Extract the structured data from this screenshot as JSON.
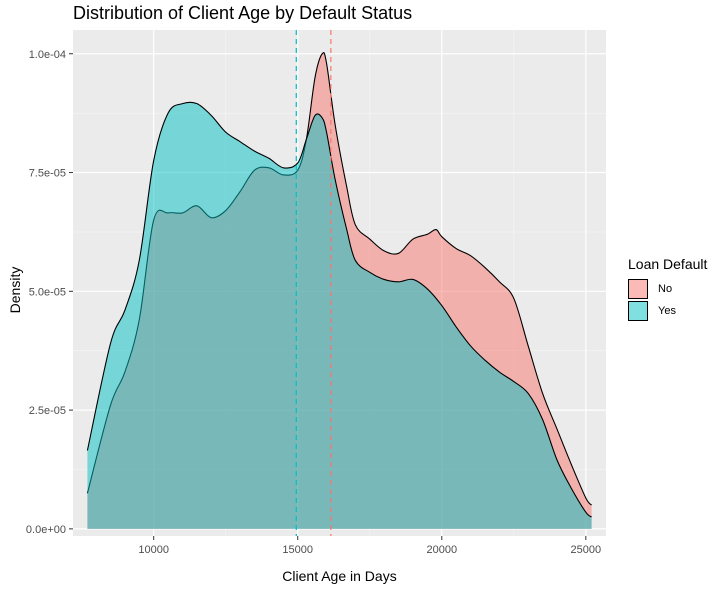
{
  "chart_data": {
    "type": "area",
    "title": "Distribution of Client Age by Default Status",
    "xlabel": "Client Age in Days",
    "ylabel": "Density",
    "xlim": [
      7200,
      25700
    ],
    "ylim": [
      -1.5e-06,
      0.000105
    ],
    "x_ticks": [
      10000,
      15000,
      20000,
      25000
    ],
    "x_tick_labels": [
      "10000",
      "15000",
      "20000",
      "25000"
    ],
    "y_ticks": [
      0,
      2.5e-05,
      5e-05,
      7.5e-05,
      0.0001
    ],
    "y_tick_labels": [
      "0.0e+00",
      "2.5e-05",
      "5.0e-05",
      "7.5e-05",
      "1.0e-04"
    ],
    "grid": true,
    "legend": {
      "title": "Loan Default",
      "position": "right"
    },
    "vlines": [
      {
        "x": 16150,
        "color": "#F8766D",
        "style": "dashed"
      },
      {
        "x": 14950,
        "color": "#00BFC4",
        "style": "dashed"
      }
    ],
    "series": [
      {
        "name": "No",
        "color": "#F8766D",
        "x": [
          7700,
          8500,
          9000,
          9500,
          10000,
          10500,
          11000,
          11500,
          12000,
          12500,
          13000,
          13500,
          14000,
          14500,
          15000,
          15300,
          15600,
          15850,
          16000,
          16300,
          16700,
          17000,
          17500,
          18000,
          18500,
          19000,
          19500,
          19800,
          20000,
          20500,
          21000,
          21500,
          22000,
          22500,
          23000,
          23500,
          24000,
          24500,
          25000,
          25200
        ],
        "values": [
          7.5e-06,
          2.6e-05,
          3.3e-05,
          4.4e-05,
          6.5e-05,
          6.65e-05,
          6.65e-05,
          6.8e-05,
          6.55e-05,
          6.7e-05,
          7.1e-05,
          7.55e-05,
          7.6e-05,
          7.45e-05,
          7.55e-05,
          8.2e-05,
          9.5e-05,
          0.0001,
          9.8e-05,
          8.5e-05,
          7.2e-05,
          6.4e-05,
          6.1e-05,
          5.85e-05,
          5.8e-05,
          6.1e-05,
          6.2e-05,
          6.3e-05,
          6.15e-05,
          5.9e-05,
          5.75e-05,
          5.5e-05,
          5.2e-05,
          4.85e-05,
          3.85e-05,
          2.85e-05,
          2.1e-05,
          1.35e-05,
          6.5e-06,
          5e-06
        ]
      },
      {
        "name": "Yes",
        "color": "#00BFC4",
        "x": [
          7700,
          8500,
          9000,
          9500,
          10000,
          10500,
          11000,
          11500,
          12000,
          12500,
          13000,
          13500,
          14000,
          14500,
          15000,
          15300,
          15600,
          15850,
          16000,
          16300,
          16700,
          17000,
          17500,
          18000,
          18500,
          19000,
          19500,
          20000,
          20500,
          21000,
          21500,
          22000,
          22500,
          23000,
          23500,
          24000,
          24500,
          25000,
          25200
        ],
        "values": [
          1.65e-05,
          3.9e-05,
          4.6e-05,
          5.65e-05,
          7.75e-05,
          8.75e-05,
          8.95e-05,
          8.95e-05,
          8.7e-05,
          8.35e-05,
          8.15e-05,
          7.95e-05,
          7.8e-05,
          7.6e-05,
          7.7e-05,
          8.2e-05,
          8.7e-05,
          8.65e-05,
          8.35e-05,
          7.35e-05,
          6.3e-05,
          5.65e-05,
          5.4e-05,
          5.25e-05,
          5.2e-05,
          5.25e-05,
          5.05e-05,
          4.7e-05,
          4.25e-05,
          3.85e-05,
          3.55e-05,
          3.3e-05,
          3.1e-05,
          2.85e-05,
          2.3e-05,
          1.45e-05,
          8.5e-06,
          3.5e-06,
          2.5e-06
        ]
      }
    ]
  }
}
